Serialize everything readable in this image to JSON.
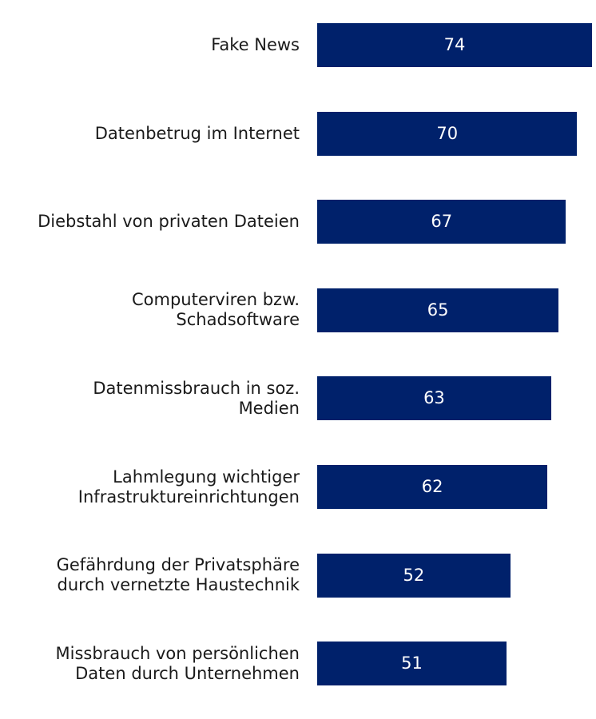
{
  "chart_data": {
    "type": "bar",
    "orientation": "horizontal",
    "title": "",
    "xlabel": "",
    "ylabel": "",
    "bar_color": "#00216b",
    "value_label_color": "#ffffff",
    "xlim": [
      0,
      74
    ],
    "grid": false,
    "legend": "none",
    "categories": [
      "Fake News",
      "Datenbetrug im Internet",
      "Diebstahl von privaten Dateien",
      "Computerviren bzw.\nSchadsoftware",
      "Datenmissbrauch in soz.\nMedien",
      "Lahmlegung wichtiger\nInfrastruktureinrichtungen",
      "Gefährdung der Privatsphäre\ndurch vernetzte Haustechnik",
      "Missbrauch von persönlichen\nDaten durch Unternehmen"
    ],
    "values": [
      74,
      70,
      67,
      65,
      63,
      62,
      52,
      51
    ]
  }
}
